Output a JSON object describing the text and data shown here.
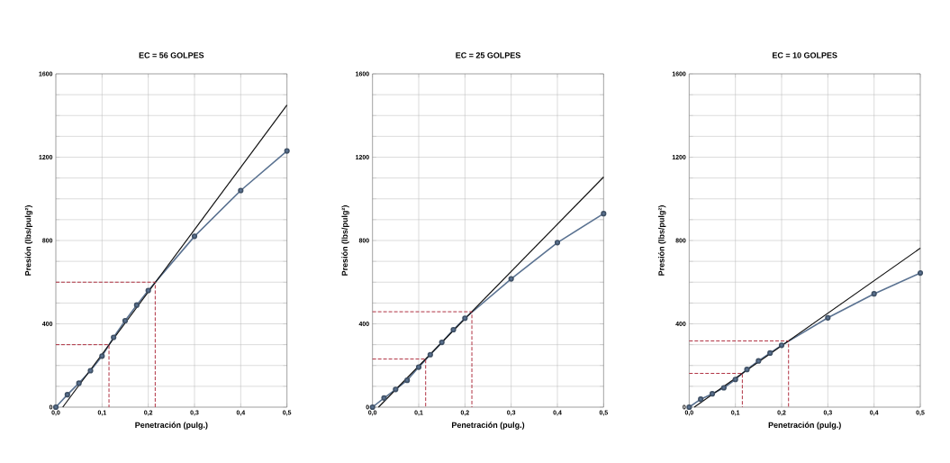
{
  "chart_data": [
    {
      "type": "line",
      "title": "EC = 56 GOLPES",
      "xlabel": "Penetración (pulg.)",
      "ylabel": "Presión (lbs/pulg²)",
      "grid": true,
      "xlim": [
        0,
        0.5
      ],
      "ylim": [
        0,
        1600
      ],
      "xticks": [
        {
          "value": 0,
          "label": "0,0"
        },
        {
          "value": 0.1,
          "label": "0,1"
        },
        {
          "value": 0.2,
          "label": "0,2"
        },
        {
          "value": 0.3,
          "label": "0,3"
        },
        {
          "value": 0.4,
          "label": "0,4"
        },
        {
          "value": 0.5,
          "label": "0,5"
        }
      ],
      "yticks": [
        0,
        {
          "value": 100,
          "label": null
        },
        {
          "value": 200,
          "label": null
        },
        {
          "value": 300,
          "label": null
        },
        400,
        {
          "value": 500,
          "label": null
        },
        {
          "value": 600,
          "label": null
        },
        {
          "value": 700,
          "label": null
        },
        800,
        {
          "value": 900,
          "label": null
        },
        {
          "value": 1000,
          "label": null
        },
        {
          "value": 1100,
          "label": null
        },
        1200,
        {
          "value": 1300,
          "label": null
        },
        {
          "value": 1400,
          "label": null
        },
        {
          "value": 1500,
          "label": null
        },
        1600
      ],
      "series": [
        {
          "color": "#5a7291",
          "marker": "circle",
          "line_style": "solid",
          "x": [
            0,
            0.025,
            0.05,
            0.075,
            0.1,
            0.125,
            0.15,
            0.175,
            0.2,
            0.3,
            0.4,
            0.5
          ],
          "values": [
            0,
            60,
            115,
            175,
            245,
            335,
            415,
            490,
            560,
            820,
            1040,
            1230
          ]
        },
        {
          "color": "#111111",
          "marker": "none",
          "line_style": "solid",
          "x": [
            0.015,
            0.5
          ],
          "values": [
            0,
            1450
          ]
        },
        {
          "color": "#b03040",
          "marker": "none",
          "line_style": "dashed",
          "x": [
            0,
            0.215,
            0.215
          ],
          "values": [
            600,
            600,
            0
          ]
        },
        {
          "color": "#b03040",
          "marker": "none",
          "line_style": "dashed",
          "x": [
            0,
            0.115,
            0.115
          ],
          "values": [
            300,
            300,
            0
          ]
        }
      ]
    },
    {
      "type": "line",
      "title": "EC = 25 GOLPES",
      "xlabel": "Penetración (pulg.)",
      "ylabel": "Presión (lbs/pulg²)",
      "grid": true,
      "xlim": [
        0,
        0.5
      ],
      "ylim": [
        0,
        1600
      ],
      "xticks": [
        {
          "value": 0,
          "label": "0,0"
        },
        {
          "value": 0.1,
          "label": "0,1"
        },
        {
          "value": 0.2,
          "label": "0,2"
        },
        {
          "value": 0.3,
          "label": "0,3"
        },
        {
          "value": 0.4,
          "label": "0,4"
        },
        {
          "value": 0.5,
          "label": "0,5"
        }
      ],
      "yticks": [
        0,
        {
          "value": 100,
          "label": null
        },
        {
          "value": 200,
          "label": null
        },
        {
          "value": 300,
          "label": null
        },
        400,
        {
          "value": 500,
          "label": null
        },
        {
          "value": 600,
          "label": null
        },
        {
          "value": 700,
          "label": null
        },
        800,
        {
          "value": 900,
          "label": null
        },
        {
          "value": 1000,
          "label": null
        },
        {
          "value": 1100,
          "label": null
        },
        1200,
        {
          "value": 1300,
          "label": null
        },
        {
          "value": 1400,
          "label": null
        },
        {
          "value": 1500,
          "label": null
        },
        1600
      ],
      "series": [
        {
          "color": "#5a7291",
          "marker": "circle",
          "line_style": "solid",
          "x": [
            0,
            0.025,
            0.05,
            0.075,
            0.1,
            0.125,
            0.15,
            0.175,
            0.2,
            0.3,
            0.4,
            0.5
          ],
          "values": [
            0,
            44,
            85,
            129,
            192,
            252,
            311,
            372,
            427,
            616,
            790,
            929
          ]
        },
        {
          "color": "#111111",
          "marker": "none",
          "line_style": "solid",
          "x": [
            0.013,
            0.5
          ],
          "values": [
            0,
            1105
          ]
        },
        {
          "color": "#b03040",
          "marker": "none",
          "line_style": "dashed",
          "x": [
            0,
            0.215,
            0.215
          ],
          "values": [
            458,
            458,
            0
          ]
        },
        {
          "color": "#b03040",
          "marker": "none",
          "line_style": "dashed",
          "x": [
            0,
            0.115,
            0.115
          ],
          "values": [
            231,
            231,
            0
          ]
        }
      ]
    },
    {
      "type": "line",
      "title": "EC = 10 GOLPES",
      "xlabel": "Penetración (pulg.)",
      "ylabel": "Presión (lbs/pulg²)",
      "grid": true,
      "xlim": [
        0,
        0.5
      ],
      "ylim": [
        0,
        1600
      ],
      "xticks": [
        {
          "value": 0,
          "label": "0,0"
        },
        {
          "value": 0.1,
          "label": "0,1"
        },
        {
          "value": 0.2,
          "label": "0,2"
        },
        {
          "value": 0.3,
          "label": "0,3"
        },
        {
          "value": 0.4,
          "label": "0,4"
        },
        {
          "value": 0.5,
          "label": "0,5"
        }
      ],
      "yticks": [
        0,
        {
          "value": 100,
          "label": null
        },
        {
          "value": 200,
          "label": null
        },
        {
          "value": 300,
          "label": null
        },
        400,
        {
          "value": 500,
          "label": null
        },
        {
          "value": 600,
          "label": null
        },
        {
          "value": 700,
          "label": null
        },
        800,
        {
          "value": 900,
          "label": null
        },
        {
          "value": 1000,
          "label": null
        },
        {
          "value": 1100,
          "label": null
        },
        1200,
        {
          "value": 1300,
          "label": null
        },
        {
          "value": 1400,
          "label": null
        },
        {
          "value": 1500,
          "label": null
        },
        1600
      ],
      "series": [
        {
          "color": "#5a7291",
          "marker": "circle",
          "line_style": "solid",
          "x": [
            0,
            0.025,
            0.05,
            0.075,
            0.1,
            0.125,
            0.15,
            0.175,
            0.2,
            0.3,
            0.4,
            0.5
          ],
          "values": [
            0,
            38,
            64,
            93,
            133,
            181,
            222,
            260,
            297,
            429,
            544,
            644
          ]
        },
        {
          "color": "#111111",
          "marker": "none",
          "line_style": "solid",
          "x": [
            0.011,
            0.5
          ],
          "values": [
            0,
            763
          ]
        },
        {
          "color": "#b03040",
          "marker": "none",
          "line_style": "dashed",
          "x": [
            0,
            0.215,
            0.215
          ],
          "values": [
            318,
            318,
            0
          ]
        },
        {
          "color": "#b03040",
          "marker": "none",
          "line_style": "dashed",
          "x": [
            0,
            0.115,
            0.115
          ],
          "values": [
            162,
            162,
            0
          ]
        }
      ]
    }
  ]
}
